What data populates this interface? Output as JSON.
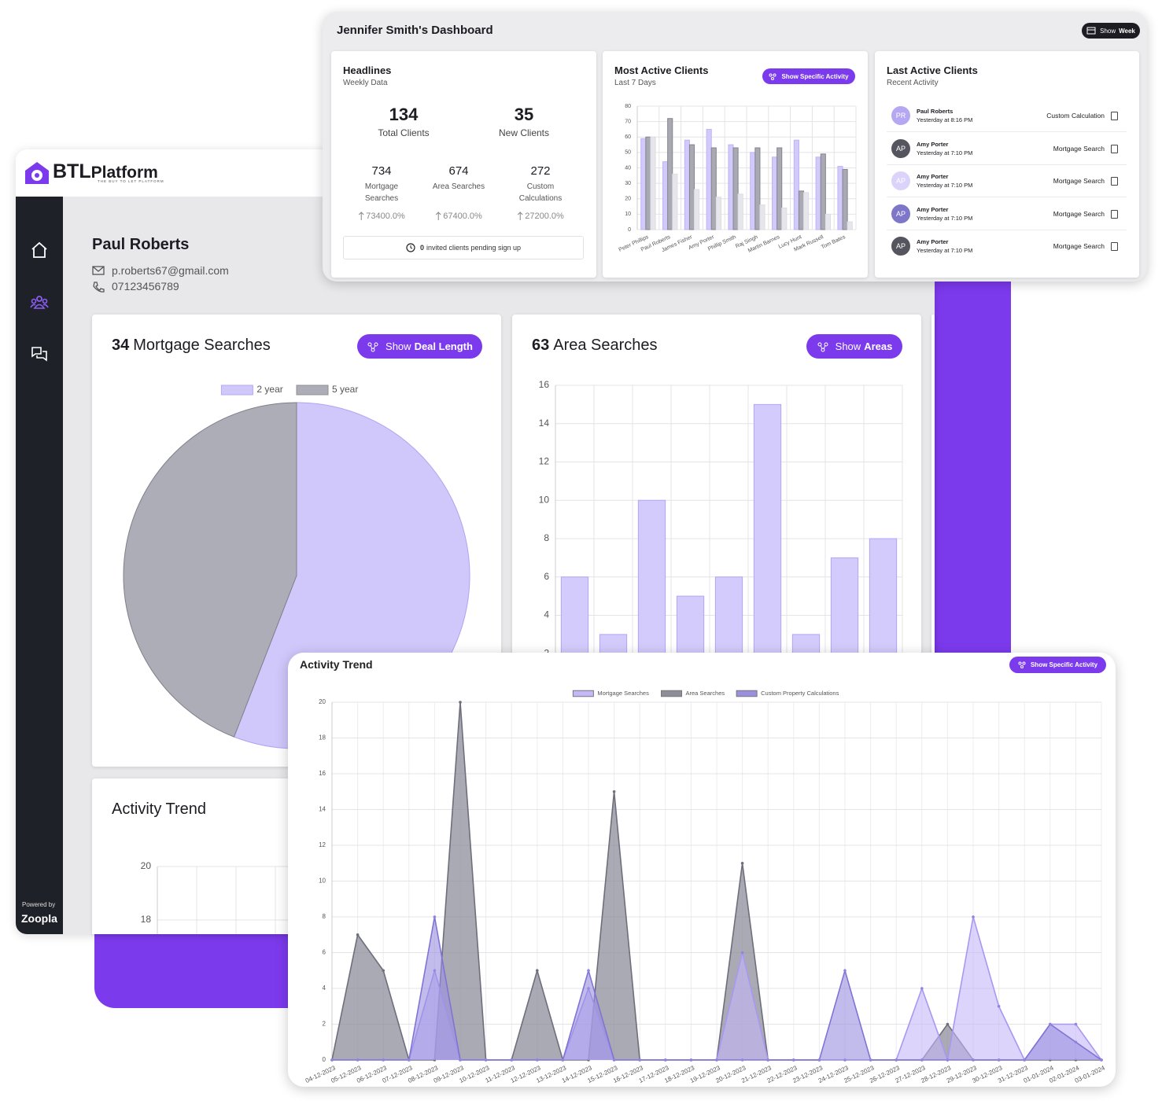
{
  "brand": {
    "logo_bold": "BTL",
    "logo_rest": "Platform",
    "tagline": "THE BUY TO LET PLATFORM",
    "powered_by": "Powered by",
    "partner": "Zoopla"
  },
  "profile": {
    "name": "Paul Roberts",
    "email": "p.roberts67@gmail.com",
    "phone": "07123456789"
  },
  "dashboard": {
    "title": "Jennifer Smith's Dashboard",
    "button": {
      "prefix": "Show",
      "bold": "Week"
    },
    "headlines": {
      "title": "Headlines",
      "subtitle": "Weekly Data",
      "stats": [
        {
          "value": 134,
          "label": "Total Clients"
        },
        {
          "value": 35,
          "label": "New Clients"
        }
      ],
      "metrics": [
        {
          "value": 734,
          "label": "Mortgage Searches",
          "change": "73400.0%"
        },
        {
          "value": 674,
          "label": "Area Searches",
          "change": "67400.0%"
        },
        {
          "value": 272,
          "label": "Custom Calculations",
          "change": "27200.0%"
        }
      ],
      "pending_count": 0,
      "pending_text": "invited clients pending sign up"
    },
    "last_active": {
      "title": "Last Active Clients",
      "subtitle": "Recent Activity",
      "rows": [
        {
          "initials": "PR",
          "name": "Paul Roberts",
          "time": "Yesterday at 8:16 PM",
          "activity": "Custom Calculation",
          "color": "#b6a7f3"
        },
        {
          "initials": "AP",
          "name": "Amy Porter",
          "time": "Yesterday at 7:10 PM",
          "activity": "Mortgage Search",
          "color": "#55555f"
        },
        {
          "initials": "AP",
          "name": "Amy Porter",
          "time": "Yesterday at 7:10 PM",
          "activity": "Mortgage Search",
          "color": "#dcd3fb"
        },
        {
          "initials": "AP",
          "name": "Amy Porter",
          "time": "Yesterday at 7:10 PM",
          "activity": "Mortgage Search",
          "color": "#7e76c9"
        },
        {
          "initials": "AP",
          "name": "Amy Porter",
          "time": "Yesterday at 7:10 PM",
          "activity": "Mortgage Search",
          "color": "#55555f"
        }
      ]
    }
  },
  "chart_data": [
    {
      "type": "pie",
      "title_count": 34,
      "title": "Mortgage Searches",
      "button": {
        "prefix": "Show",
        "bold": "Deal Length"
      },
      "categories": [
        "2 year",
        "5 year"
      ],
      "values": [
        19,
        15
      ],
      "colors": [
        "#d0c8fb",
        "#adadb8"
      ]
    },
    {
      "type": "bar",
      "title_count": 63,
      "title": "Area Searches",
      "button": {
        "prefix": "Show",
        "bold": "Areas"
      },
      "values": [
        6,
        3,
        10,
        5,
        6,
        15,
        3,
        7,
        8
      ],
      "color": "#d3cbfb",
      "ylim": [
        0,
        16
      ],
      "yticks": [
        0,
        2,
        4,
        6,
        8,
        10,
        12,
        14,
        16
      ],
      "grid": true
    },
    {
      "type": "bar",
      "title": "Most Active Clients",
      "subtitle": "Last 7 Days",
      "button": "Show Specific Activity",
      "categories": [
        "Peter Phillips",
        "Paul Roberts",
        "James Fisher",
        "Amy Porter",
        "Phillip Smith",
        "Raj Singh",
        "Martin Barnes",
        "Lucy Hunt",
        "Mark Russell",
        "Tom Bates"
      ],
      "series": [
        {
          "color": "#d2cafb",
          "values": [
            59,
            44,
            58,
            65,
            55,
            50,
            47,
            58,
            47,
            41
          ]
        },
        {
          "color": "#a9a9b4",
          "values": [
            60,
            72,
            55,
            53,
            53,
            53,
            53,
            25,
            49,
            39
          ]
        },
        {
          "color": "#e6e6ec",
          "values": [
            60,
            36,
            26,
            21,
            23,
            16,
            14,
            24,
            10,
            5
          ]
        }
      ],
      "ylim": [
        0,
        80
      ],
      "yticks": [
        0,
        10,
        20,
        30,
        40,
        50,
        60,
        70,
        80
      ],
      "grid": true
    },
    {
      "type": "area",
      "title": "Activity Trend",
      "button": "Show Specific Activity",
      "categories": [
        "04-12-2023",
        "05-12-2023",
        "06-12-2023",
        "07-12-2023",
        "08-12-2023",
        "09-12-2023",
        "10-12-2023",
        "11-12-2023",
        "12-12-2023",
        "13-12-2023",
        "14-12-2023",
        "15-12-2023",
        "16-12-2023",
        "17-12-2023",
        "18-12-2023",
        "19-12-2023",
        "20-12-2023",
        "21-12-2023",
        "22-12-2023",
        "23-12-2023",
        "24-12-2023",
        "25-12-2023",
        "26-12-2023",
        "27-12-2023",
        "28-12-2023",
        "29-12-2023",
        "30-12-2023",
        "31-12-2023",
        "01-01-2024",
        "02-01-2024",
        "03-01-2024"
      ],
      "series": [
        {
          "name": "Mortgage Searches",
          "color": "#c4b8f8",
          "values": [
            0,
            0,
            0,
            0,
            5,
            0,
            0,
            0,
            0,
            0,
            4,
            0,
            0,
            0,
            0,
            0,
            6,
            0,
            0,
            0,
            0,
            0,
            0,
            4,
            0,
            8,
            3,
            0,
            2,
            2,
            0
          ]
        },
        {
          "name": "Area Searches",
          "color": "#8e8e9b",
          "values": [
            0,
            7,
            5,
            0,
            0,
            20,
            0,
            0,
            5,
            0,
            0,
            15,
            0,
            0,
            0,
            0,
            11,
            0,
            0,
            0,
            0,
            0,
            0,
            0,
            2,
            0,
            0,
            0,
            0,
            0,
            0
          ]
        },
        {
          "name": "Custom Property Calculations",
          "color": "#9990e0",
          "values": [
            0,
            0,
            0,
            0,
            8,
            0,
            0,
            0,
            0,
            0,
            5,
            0,
            0,
            0,
            0,
            0,
            0,
            0,
            0,
            0,
            5,
            0,
            0,
            0,
            0,
            0,
            0,
            0,
            2,
            1,
            0
          ]
        }
      ],
      "ylim": [
        0,
        20
      ],
      "yticks": [
        0,
        2,
        4,
        6,
        8,
        10,
        12,
        14,
        16,
        18,
        20
      ],
      "grid": true
    },
    {
      "type": "line",
      "title": "Activity Trend",
      "ylim": [
        0,
        20
      ],
      "yticks": [
        18,
        20
      ],
      "grid": true
    }
  ]
}
